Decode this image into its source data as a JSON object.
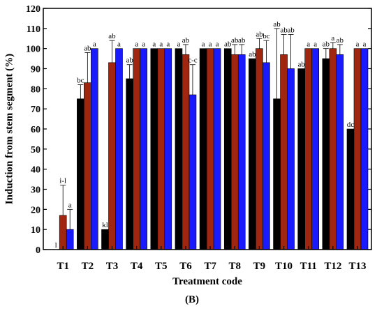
{
  "panel_label": "(B)",
  "chart_data": {
    "type": "bar",
    "xlabel": "Treatment code",
    "ylabel": "Induction from stem segment (%)",
    "ylim": [
      0,
      120
    ],
    "ytick_step": 10,
    "grid": false,
    "legend": "none",
    "categories": [
      "T1",
      "T2",
      "T3",
      "T4",
      "T5",
      "T6",
      "T7",
      "T8",
      "T9",
      "T10",
      "T11",
      "T12",
      "T13"
    ],
    "series": [
      {
        "color": "#000000",
        "values": [
          0,
          75,
          10,
          85,
          100,
          100,
          100,
          100,
          95,
          75,
          90,
          95,
          60
        ],
        "errors": [
          0,
          7,
          0,
          7,
          0,
          0,
          0,
          0,
          0,
          35,
          0,
          5,
          0
        ],
        "labels": [
          "l",
          "bc",
          "kl",
          "ab",
          "a",
          "a",
          "a",
          "ab",
          "ab",
          "ab",
          "ab",
          "ab",
          "dc"
        ]
      },
      {
        "color": "#a0260f",
        "values": [
          17,
          83,
          93,
          100,
          100,
          97,
          100,
          97,
          100,
          97,
          100,
          100,
          100
        ],
        "errors": [
          15,
          15,
          11,
          0,
          0,
          5,
          0,
          5,
          5,
          10,
          0,
          3,
          0
        ],
        "labels": [
          "i-l",
          "ab",
          "ab",
          "a",
          "a",
          "ab",
          "a",
          "ab",
          "ab",
          "ab",
          "a",
          "a",
          "a"
        ]
      },
      {
        "color": "#1a1aff",
        "values": [
          10,
          100,
          100,
          100,
          100,
          77,
          100,
          97,
          93,
          90,
          100,
          97,
          100
        ],
        "errors": [
          10,
          0,
          0,
          0,
          0,
          15,
          0,
          5,
          11,
          17,
          0,
          5,
          0
        ],
        "labels": [
          "a",
          "a",
          "a",
          "a",
          "a",
          "c-c",
          "a",
          "ab",
          "bc",
          "ab",
          "a",
          "ab",
          "a"
        ]
      }
    ]
  }
}
